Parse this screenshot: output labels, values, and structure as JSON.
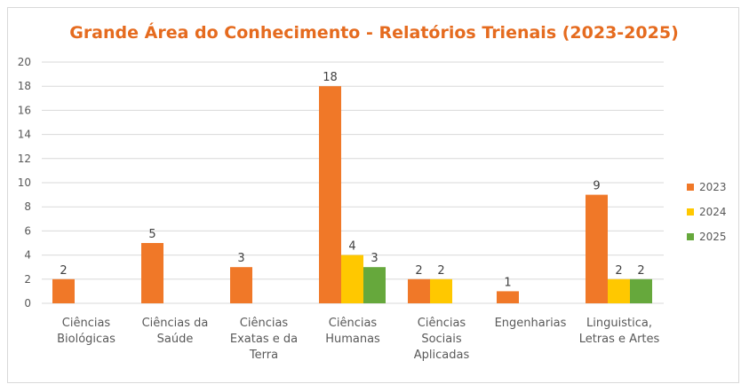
{
  "chart_data": {
    "type": "bar",
    "title": "Grande Área do Conhecimento - Relatórios Trienais (2023-2025)",
    "xlabel": "",
    "ylabel": "",
    "ylim": [
      0,
      20
    ],
    "yticks": [
      0,
      2,
      4,
      6,
      8,
      10,
      12,
      14,
      16,
      18,
      20
    ],
    "grid": true,
    "legend_position": "right",
    "categories": [
      [
        "Ciências",
        "Biológicas"
      ],
      [
        "Ciências da",
        "Saúde"
      ],
      [
        "Ciências",
        "Exatas e da",
        "Terra"
      ],
      [
        "Ciências",
        "Humanas"
      ],
      [
        "Ciências",
        "Sociais",
        "Aplicadas"
      ],
      [
        "Engenharias"
      ],
      [
        "Linguistica,",
        "Letras e Artes"
      ]
    ],
    "series": [
      {
        "name": "2023",
        "color": "#f07828",
        "values": [
          2,
          5,
          3,
          18,
          2,
          1,
          9
        ]
      },
      {
        "name": "2024",
        "color": "#ffc800",
        "values": [
          null,
          null,
          null,
          4,
          2,
          null,
          2
        ]
      },
      {
        "name": "2025",
        "color": "#66a83c",
        "values": [
          null,
          null,
          null,
          3,
          null,
          null,
          2
        ]
      }
    ],
    "title_color": "#e56b1f",
    "gridline_color": "#d9d9d9"
  }
}
